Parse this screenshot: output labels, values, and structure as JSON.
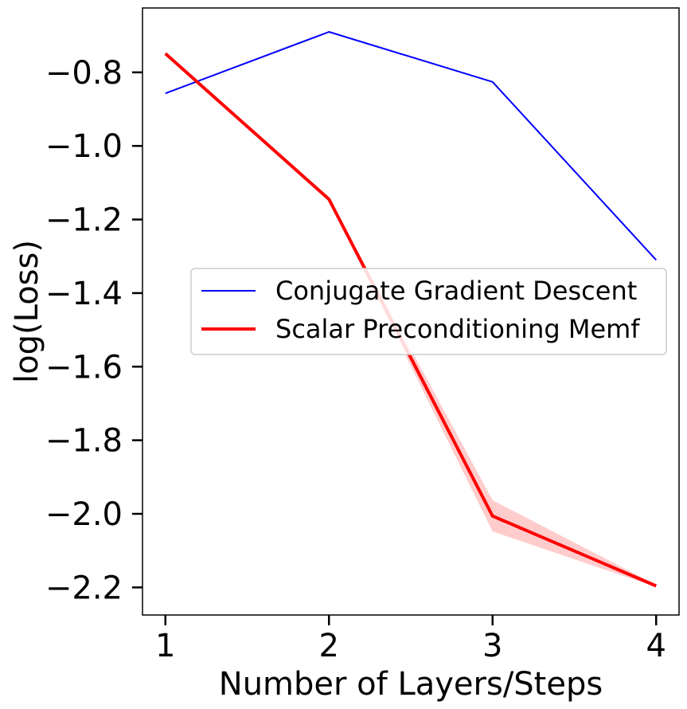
{
  "chart_data": {
    "type": "line",
    "title": "",
    "xlabel": "Number of Layers/Steps",
    "ylabel": "log(Loss)",
    "xlim": [
      0.86,
      4.14
    ],
    "ylim": [
      -2.275,
      -0.625
    ],
    "x_ticks": [
      1,
      2,
      3,
      4
    ],
    "x_tick_labels": [
      "1",
      "2",
      "3",
      "4"
    ],
    "y_ticks": [
      -0.8,
      -1.0,
      -1.2,
      -1.4,
      -1.6,
      -1.8,
      -2.0,
      -2.2
    ],
    "y_tick_labels": [
      "−0.8",
      "−1.0",
      "−1.2",
      "−1.4",
      "−1.6",
      "−1.8",
      "−2.0",
      "−2.2"
    ],
    "grid": false,
    "legend_position": "center-right",
    "series": [
      {
        "name": "Conjugate Gradient Descent",
        "color": "#0000ff",
        "x": [
          1,
          2,
          3,
          4
        ],
        "values": [
          -0.857,
          -0.69,
          -0.826,
          -1.31
        ]
      },
      {
        "name": "Scalar Preconditioning Memf",
        "color": "#ff0000",
        "x": [
          1,
          2,
          3,
          4
        ],
        "values": [
          -0.749,
          -1.145,
          -2.006,
          -2.196
        ],
        "band_lower": [
          -0.754,
          -1.148,
          -2.048,
          -2.199
        ],
        "band_upper": [
          -0.744,
          -1.142,
          -1.963,
          -2.193
        ],
        "band_color": "#ffcccc"
      }
    ]
  }
}
